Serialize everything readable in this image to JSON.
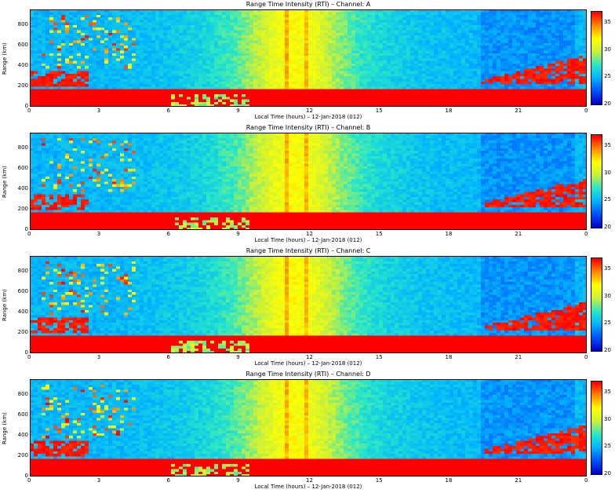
{
  "chart_data": [
    {
      "type": "heatmap",
      "title": "Range Time Intensity (RTI) – Channel: A",
      "xlabel": "Local Time (hours) – 12-Jan-2018 (012)",
      "ylabel": "Range (km)",
      "x_ticks": [
        "0",
        "3",
        "6",
        "9",
        "12",
        "15",
        "18",
        "21",
        "0"
      ],
      "x_tick_values": [
        0,
        3,
        6,
        9,
        12,
        15,
        18,
        21,
        24
      ],
      "y_ticks": [
        "0",
        "200",
        "400",
        "600",
        "800"
      ],
      "y_tick_values": [
        0,
        200,
        400,
        600,
        800
      ],
      "xlim": [
        0,
        24
      ],
      "ylim": [
        0,
        950
      ],
      "colorbar": {
        "ticks": [
          "20",
          "25",
          "30",
          "35"
        ],
        "range": [
          20,
          37
        ]
      },
      "colormap": [
        "#0000c8",
        "#0050ff",
        "#00b4ff",
        "#28e6c8",
        "#c8f03c",
        "#ffff00",
        "#ff8c00",
        "#ff0000"
      ]
    },
    {
      "type": "heatmap",
      "title": "Range Time Intensity (RTI) – Channel: B",
      "xlabel": "Local Time (hours) – 12-Jan-2018 (012)",
      "ylabel": "Range (km)",
      "x_ticks": [
        "0",
        "3",
        "6",
        "9",
        "12",
        "15",
        "18",
        "21",
        "0"
      ],
      "x_tick_values": [
        0,
        3,
        6,
        9,
        12,
        15,
        18,
        21,
        24
      ],
      "y_ticks": [
        "0",
        "200",
        "400",
        "600",
        "800"
      ],
      "y_tick_values": [
        0,
        200,
        400,
        600,
        800
      ],
      "xlim": [
        0,
        24
      ],
      "ylim": [
        0,
        950
      ],
      "colorbar": {
        "ticks": [
          "20",
          "25",
          "30",
          "35"
        ],
        "range": [
          20,
          37
        ]
      },
      "colormap": [
        "#0000c8",
        "#0050ff",
        "#00b4ff",
        "#28e6c8",
        "#c8f03c",
        "#ffff00",
        "#ff8c00",
        "#ff0000"
      ]
    },
    {
      "type": "heatmap",
      "title": "Range Time Intensity (RTI) – Channel: C",
      "xlabel": "Local Time (hours) – 12-Jan-2018 (012)",
      "ylabel": "Range (km)",
      "x_ticks": [
        "0",
        "3",
        "6",
        "9",
        "12",
        "15",
        "18",
        "21",
        "0"
      ],
      "x_tick_values": [
        0,
        3,
        6,
        9,
        12,
        15,
        18,
        21,
        24
      ],
      "y_ticks": [
        "0",
        "200",
        "400",
        "600",
        "800"
      ],
      "y_tick_values": [
        0,
        200,
        400,
        600,
        800
      ],
      "xlim": [
        0,
        24
      ],
      "ylim": [
        0,
        950
      ],
      "colorbar": {
        "ticks": [
          "20",
          "25",
          "30",
          "35"
        ],
        "range": [
          20,
          37
        ]
      },
      "colormap": [
        "#0000c8",
        "#0050ff",
        "#00b4ff",
        "#28e6c8",
        "#c8f03c",
        "#ffff00",
        "#ff8c00",
        "#ff0000"
      ]
    },
    {
      "type": "heatmap",
      "title": "Range Time Intensity (RTI) – Channel: D",
      "xlabel": "Local Time (hours) – 12-Jan-2018 (012)",
      "ylabel": "Range (km)",
      "x_ticks": [
        "0",
        "3",
        "6",
        "9",
        "12",
        "15",
        "18",
        "21",
        "0"
      ],
      "x_tick_values": [
        0,
        3,
        6,
        9,
        12,
        15,
        18,
        21,
        24
      ],
      "y_ticks": [
        "0",
        "200",
        "400",
        "600",
        "800"
      ],
      "y_tick_values": [
        0,
        200,
        400,
        600,
        800
      ],
      "xlim": [
        0,
        24
      ],
      "ylim": [
        0,
        950
      ],
      "colorbar": {
        "ticks": [
          "20",
          "25",
          "30",
          "35"
        ],
        "range": [
          20,
          37
        ]
      },
      "colormap": [
        "#0000c8",
        "#0050ff",
        "#00b4ff",
        "#28e6c8",
        "#c8f03c",
        "#ffff00",
        "#ff8c00",
        "#ff0000"
      ]
    }
  ]
}
